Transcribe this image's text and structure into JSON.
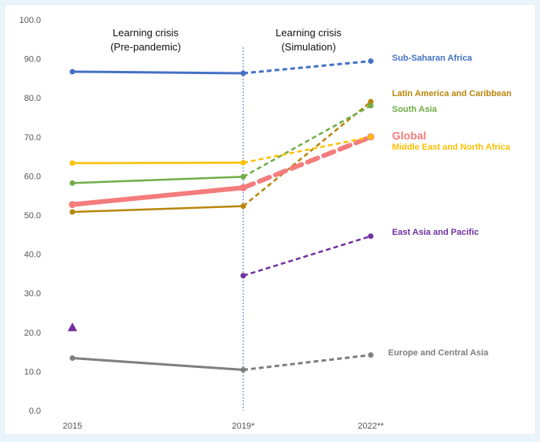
{
  "chart_data": {
    "type": "line",
    "x": [
      "2015",
      "2019*",
      "2022**"
    ],
    "ylim": [
      0,
      100
    ],
    "yticks": [
      "0.0",
      "10.0",
      "20.0",
      "30.0",
      "40.0",
      "50.0",
      "60.0",
      "70.0",
      "80.0",
      "90.0",
      "100.0"
    ],
    "grid": false,
    "phases": [
      {
        "line1": "Learning crisis",
        "line2": "(Pre-pandemic)"
      },
      {
        "line1": "Learning crisis",
        "line2": "(Simulation)"
      }
    ],
    "series": [
      {
        "name": "Sub-Saharan Africa",
        "color": "#4472c4",
        "values": [
          86.7,
          86.3,
          89.4
        ],
        "width": 3,
        "label_big": false
      },
      {
        "name": "Latin America and Caribbean",
        "color": "#b8860b",
        "values": [
          50.8,
          52.3,
          79.0
        ],
        "width": 2.5,
        "label_big": false
      },
      {
        "name": "South Asia",
        "color": "#70ad47",
        "values": [
          58.2,
          59.8,
          78.0
        ],
        "width": 2.5,
        "label_big": false
      },
      {
        "name": "Global",
        "color": "#f47c7c",
        "values": [
          52.7,
          57.0,
          70.0
        ],
        "width": 6,
        "label_big": true
      },
      {
        "name": "Middle East and North Africa",
        "color": "#ffc000",
        "values": [
          63.3,
          63.4,
          70.0
        ],
        "width": 2.5,
        "label_big": false
      },
      {
        "name": "East Asia and Pacific",
        "color": "#7030a0",
        "values": [
          null,
          34.5,
          44.6
        ],
        "width": 2.5,
        "label_big": false
      },
      {
        "name": "Europe and Central Asia",
        "color": "#7f7f7f",
        "values": [
          13.4,
          10.4,
          14.2
        ],
        "width": 3,
        "label_big": false
      }
    ],
    "markers": [
      {
        "series": "East Asia and Pacific",
        "x": "2015",
        "value": 21.3,
        "shape": "triangle",
        "color": "#7030a0"
      }
    ]
  }
}
